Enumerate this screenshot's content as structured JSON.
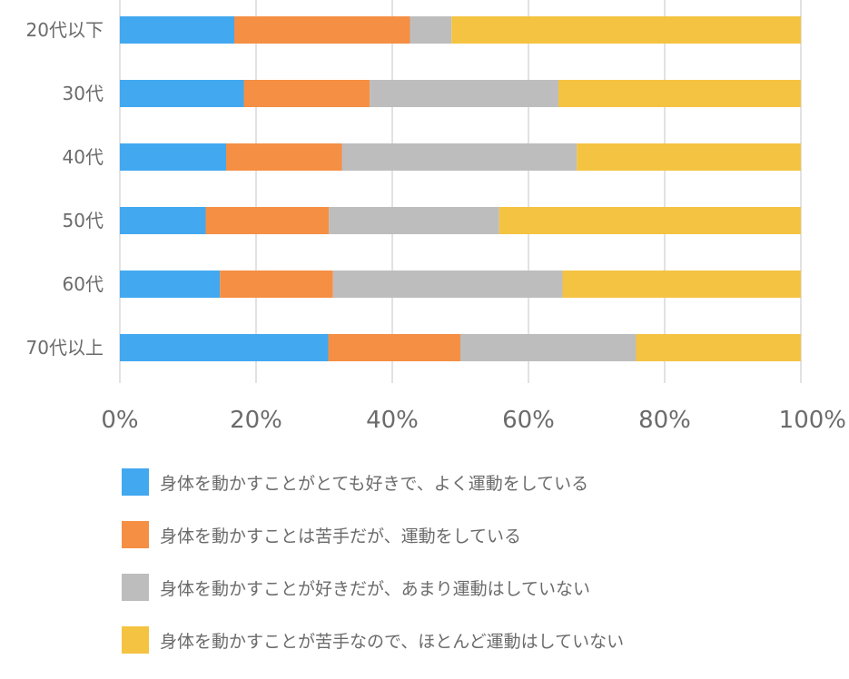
{
  "chart_data": {
    "type": "bar",
    "orientation": "horizontal",
    "stacked": "percent",
    "categories": [
      "20代以下",
      "30代",
      "40代",
      "50代",
      "60代",
      "70代以上"
    ],
    "series": [
      {
        "name": "身体を動かすことがとても好きで、よく運動をしている",
        "color": "#42a8f0",
        "values": [
          16.8,
          18.2,
          15.6,
          12.6,
          14.7,
          30.6
        ]
      },
      {
        "name": "身体を動かすことは苦手だが、運動をしている",
        "color": "#f58f44",
        "values": [
          25.8,
          18.5,
          17.0,
          18.1,
          16.6,
          19.4
        ]
      },
      {
        "name": "身体を動かすことが好きだが、あまり運動はしていない",
        "color": "#bdbdbd",
        "values": [
          6.1,
          27.7,
          34.5,
          25.0,
          33.7,
          25.8
        ]
      },
      {
        "name": "身体を動かすことが苦手なので、ほとんど運動はしていない",
        "color": "#f5c342",
        "values": [
          51.3,
          35.6,
          32.9,
          44.3,
          35.0,
          24.2
        ]
      }
    ],
    "xticks": [
      "0%",
      "20%",
      "40%",
      "60%",
      "80%",
      "100%"
    ],
    "xlim": [
      0,
      100
    ],
    "grid": true,
    "legend_position": "bottom"
  }
}
